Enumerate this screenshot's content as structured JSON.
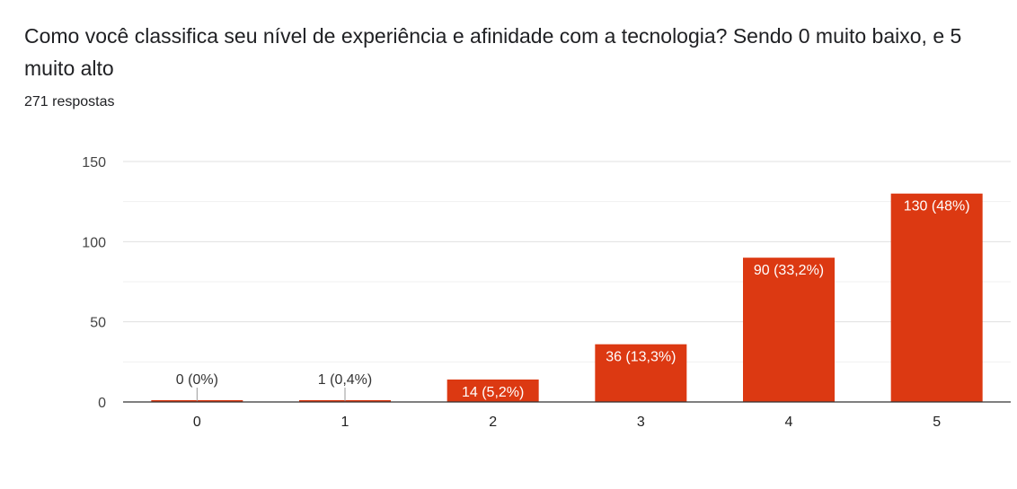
{
  "question": {
    "title": "Como você classifica seu nível de experiência e afinidade com a tecnologia? Sendo 0 muito baixo, e 5 muito alto",
    "responses": "271 respostas"
  },
  "chart_data": {
    "type": "bar",
    "categories": [
      "0",
      "1",
      "2",
      "3",
      "4",
      "5"
    ],
    "values": [
      0,
      1,
      14,
      36,
      90,
      130
    ],
    "data_labels": [
      "0 (0%)",
      "1 (0,4%)",
      "14 (5,2%)",
      "36 (13,3%)",
      "90 (33,2%)",
      "130 (48%)"
    ],
    "ylim": [
      0,
      150
    ],
    "yticks": [
      0,
      50,
      100,
      150
    ],
    "grid": true,
    "bar_color": "#dc3912",
    "title": "",
    "xlabel": "",
    "ylabel": ""
  }
}
